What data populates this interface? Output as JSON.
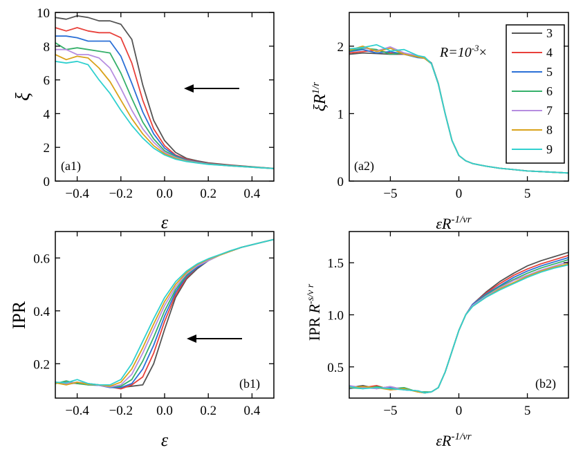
{
  "legend": {
    "title": "R=10",
    "title_sup": "-3",
    "title_tail": "×",
    "entries": [
      "3",
      "4",
      "5",
      "6",
      "7",
      "8",
      "9"
    ],
    "colors": [
      "#545454",
      "#e8403a",
      "#2a6fd6",
      "#35b06a",
      "#b68de0",
      "#d9a21a",
      "#2fd0cf"
    ]
  },
  "arrow": {
    "direction": "left"
  },
  "chart_data": [
    {
      "id": "a1",
      "panel_label": "(a1)",
      "type": "line",
      "xlabel": "ε",
      "ylabel": "ξ",
      "xlim": [
        -0.5,
        0.5
      ],
      "ylim": [
        0,
        10
      ],
      "xticks": [
        -0.4,
        -0.2,
        0.0,
        0.2,
        0.4
      ],
      "xtick_labels": [
        "−0.4",
        "−0.2",
        "0.0",
        "0.2",
        "0.4"
      ],
      "yticks": [
        0,
        2,
        4,
        6,
        8,
        10
      ],
      "ytick_labels": [
        "0",
        "2",
        "4",
        "6",
        "8",
        "10"
      ],
      "x": [
        -0.5,
        -0.45,
        -0.4,
        -0.35,
        -0.3,
        -0.25,
        -0.2,
        -0.15,
        -0.1,
        -0.05,
        0.0,
        0.05,
        0.1,
        0.15,
        0.2,
        0.3,
        0.4,
        0.5
      ],
      "series": [
        {
          "name": "3",
          "values": [
            9.7,
            9.6,
            9.8,
            9.7,
            9.5,
            9.5,
            9.3,
            8.4,
            5.7,
            3.6,
            2.4,
            1.7,
            1.35,
            1.2,
            1.08,
            0.95,
            0.85,
            0.75
          ]
        },
        {
          "name": "4",
          "values": [
            9.1,
            8.9,
            9.1,
            8.9,
            8.8,
            8.8,
            8.5,
            7.0,
            4.8,
            3.1,
            2.1,
            1.55,
            1.3,
            1.15,
            1.05,
            0.93,
            0.84,
            0.74
          ]
        },
        {
          "name": "5",
          "values": [
            8.6,
            8.6,
            8.5,
            8.3,
            8.3,
            8.3,
            7.4,
            5.8,
            4.1,
            2.8,
            1.95,
            1.5,
            1.25,
            1.13,
            1.03,
            0.92,
            0.83,
            0.74
          ]
        },
        {
          "name": "6",
          "values": [
            8.2,
            7.8,
            7.9,
            7.8,
            7.7,
            7.6,
            6.4,
            4.9,
            3.5,
            2.5,
            1.8,
            1.45,
            1.22,
            1.11,
            1.02,
            0.91,
            0.83,
            0.74
          ]
        },
        {
          "name": "7",
          "values": [
            7.8,
            7.8,
            7.5,
            7.5,
            7.3,
            6.7,
            5.5,
            4.2,
            3.1,
            2.3,
            1.7,
            1.4,
            1.2,
            1.1,
            1.01,
            0.9,
            0.82,
            0.74
          ]
        },
        {
          "name": "8",
          "values": [
            7.5,
            7.2,
            7.4,
            7.3,
            6.7,
            5.9,
            4.8,
            3.7,
            2.8,
            2.1,
            1.62,
            1.35,
            1.18,
            1.08,
            1.0,
            0.9,
            0.82,
            0.74
          ]
        },
        {
          "name": "9",
          "values": [
            7.1,
            7.0,
            7.1,
            6.9,
            6.0,
            5.2,
            4.2,
            3.3,
            2.55,
            1.95,
            1.55,
            1.3,
            1.16,
            1.07,
            0.99,
            0.9,
            0.82,
            0.74
          ]
        }
      ]
    },
    {
      "id": "a2",
      "panel_label": "(a2)",
      "type": "line",
      "xlabel": "εR-1/νr",
      "ylabel": "ξR1/r",
      "xlim": [
        -8,
        8
      ],
      "ylim": [
        0,
        2.5
      ],
      "xticks": [
        -5,
        0,
        5
      ],
      "xtick_labels": [
        "−5",
        "0",
        "5"
      ],
      "yticks": [
        0,
        1,
        2
      ],
      "ytick_labels": [
        "0",
        "1",
        "2"
      ],
      "x": [
        -8,
        -7,
        -6,
        -5,
        -4,
        -3,
        -2.5,
        -2,
        -1.5,
        -1,
        -0.5,
        0,
        0.5,
        1,
        1.5,
        2,
        3,
        4,
        5,
        6,
        7,
        8
      ],
      "series": [
        {
          "name": "3",
          "values": [
            1.88,
            1.9,
            1.89,
            1.88,
            1.88,
            1.85,
            1.83,
            1.75,
            1.45,
            1.0,
            0.6,
            0.38,
            0.3,
            0.26,
            0.24,
            0.22,
            0.19,
            0.17,
            0.15,
            0.14,
            0.13,
            0.12
          ]
        },
        {
          "name": "4",
          "values": [
            1.9,
            1.92,
            1.94,
            1.9,
            1.88,
            1.84,
            1.82,
            1.74,
            1.44,
            1.0,
            0.6,
            0.38,
            0.3,
            0.26,
            0.24,
            0.22,
            0.19,
            0.17,
            0.15,
            0.14,
            0.13,
            0.12
          ]
        },
        {
          "name": "5",
          "values": [
            1.92,
            1.95,
            1.9,
            1.92,
            1.88,
            1.83,
            1.82,
            1.74,
            1.44,
            1.0,
            0.6,
            0.38,
            0.3,
            0.26,
            0.24,
            0.22,
            0.19,
            0.17,
            0.15,
            0.14,
            0.13,
            0.12
          ]
        },
        {
          "name": "6",
          "values": [
            1.93,
            1.97,
            1.95,
            1.88,
            1.9,
            1.85,
            1.82,
            1.74,
            1.44,
            1.0,
            0.6,
            0.38,
            0.3,
            0.26,
            0.24,
            0.22,
            0.19,
            0.17,
            0.15,
            0.14,
            0.13,
            0.12
          ]
        },
        {
          "name": "7",
          "values": [
            1.95,
            1.98,
            1.93,
            1.99,
            1.9,
            1.86,
            1.83,
            1.74,
            1.44,
            1.0,
            0.6,
            0.38,
            0.3,
            0.26,
            0.24,
            0.22,
            0.19,
            0.17,
            0.15,
            0.14,
            0.13,
            0.12
          ]
        },
        {
          "name": "8",
          "values": [
            1.94,
            2.0,
            1.92,
            1.97,
            1.88,
            1.84,
            1.82,
            1.74,
            1.44,
            1.0,
            0.6,
            0.38,
            0.3,
            0.26,
            0.24,
            0.22,
            0.19,
            0.17,
            0.15,
            0.14,
            0.13,
            0.12
          ]
        },
        {
          "name": "9",
          "values": [
            1.96,
            1.98,
            2.02,
            1.93,
            1.95,
            1.86,
            1.84,
            1.74,
            1.44,
            1.0,
            0.6,
            0.38,
            0.3,
            0.26,
            0.24,
            0.22,
            0.19,
            0.17,
            0.15,
            0.14,
            0.13,
            0.12
          ]
        }
      ]
    },
    {
      "id": "b1",
      "panel_label": "(b1)",
      "type": "line",
      "xlabel": "ε",
      "ylabel": "IPR",
      "xlim": [
        -0.5,
        0.5
      ],
      "ylim": [
        0.07,
        0.7
      ],
      "xticks": [
        -0.4,
        -0.2,
        0.0,
        0.2,
        0.4
      ],
      "xtick_labels": [
        "−0.4",
        "−0.2",
        "0.0",
        "0.2",
        "0.4"
      ],
      "yticks": [
        0.2,
        0.4,
        0.6
      ],
      "ytick_labels": [
        "0.2",
        "0.4",
        "0.6"
      ],
      "x": [
        -0.5,
        -0.45,
        -0.4,
        -0.35,
        -0.3,
        -0.25,
        -0.2,
        -0.15,
        -0.1,
        -0.05,
        0.0,
        0.05,
        0.1,
        0.15,
        0.2,
        0.25,
        0.3,
        0.35,
        0.4,
        0.45,
        0.5
      ],
      "series": [
        {
          "name": "3",
          "values": [
            0.13,
            0.125,
            0.13,
            0.125,
            0.12,
            0.115,
            0.11,
            0.115,
            0.12,
            0.2,
            0.33,
            0.45,
            0.52,
            0.56,
            0.59,
            0.61,
            0.625,
            0.64,
            0.65,
            0.66,
            0.67
          ]
        },
        {
          "name": "4",
          "values": [
            0.128,
            0.13,
            0.125,
            0.122,
            0.12,
            0.112,
            0.105,
            0.12,
            0.15,
            0.24,
            0.36,
            0.46,
            0.525,
            0.565,
            0.59,
            0.61,
            0.625,
            0.64,
            0.65,
            0.66,
            0.67
          ]
        },
        {
          "name": "5",
          "values": [
            0.13,
            0.122,
            0.128,
            0.12,
            0.118,
            0.11,
            0.11,
            0.125,
            0.18,
            0.27,
            0.38,
            0.47,
            0.53,
            0.565,
            0.59,
            0.61,
            0.625,
            0.64,
            0.65,
            0.66,
            0.67
          ]
        },
        {
          "name": "6",
          "values": [
            0.125,
            0.135,
            0.125,
            0.12,
            0.12,
            0.112,
            0.115,
            0.14,
            0.21,
            0.3,
            0.4,
            0.48,
            0.535,
            0.57,
            0.59,
            0.61,
            0.625,
            0.64,
            0.65,
            0.66,
            0.67
          ]
        },
        {
          "name": "7",
          "values": [
            0.13,
            0.125,
            0.13,
            0.125,
            0.118,
            0.112,
            0.12,
            0.16,
            0.24,
            0.33,
            0.42,
            0.49,
            0.54,
            0.57,
            0.59,
            0.61,
            0.625,
            0.64,
            0.65,
            0.66,
            0.67
          ]
        },
        {
          "name": "8",
          "values": [
            0.128,
            0.12,
            0.13,
            0.122,
            0.12,
            0.115,
            0.13,
            0.18,
            0.26,
            0.35,
            0.435,
            0.5,
            0.545,
            0.575,
            0.595,
            0.61,
            0.625,
            0.64,
            0.65,
            0.66,
            0.67
          ]
        },
        {
          "name": "9",
          "values": [
            0.13,
            0.128,
            0.14,
            0.125,
            0.12,
            0.12,
            0.14,
            0.2,
            0.285,
            0.37,
            0.45,
            0.51,
            0.55,
            0.578,
            0.597,
            0.612,
            0.627,
            0.64,
            0.65,
            0.66,
            0.67
          ]
        }
      ]
    },
    {
      "id": "b2",
      "panel_label": "(b2)",
      "type": "line",
      "xlabel": "εR-1/νr",
      "ylabel": "IPR R-s/ν r",
      "xlim": [
        -8,
        8
      ],
      "ylim": [
        0.2,
        1.8
      ],
      "xticks": [
        -5,
        0,
        5
      ],
      "xtick_labels": [
        "−5",
        "0",
        "5"
      ],
      "yticks": [
        0.5,
        1.0,
        1.5
      ],
      "ytick_labels": [
        "0.5",
        "1.0",
        "1.5"
      ],
      "x": [
        -8,
        -7,
        -6,
        -5,
        -4,
        -3,
        -2.5,
        -2,
        -1.5,
        -1,
        -0.5,
        0,
        0.5,
        1,
        2,
        3,
        4,
        5,
        6,
        7,
        8
      ],
      "series": [
        {
          "name": "3",
          "values": [
            0.3,
            0.32,
            0.29,
            0.31,
            0.28,
            0.27,
            0.25,
            0.26,
            0.3,
            0.45,
            0.65,
            0.85,
            1.0,
            1.1,
            1.22,
            1.32,
            1.4,
            1.47,
            1.52,
            1.56,
            1.6
          ]
        },
        {
          "name": "4",
          "values": [
            0.31,
            0.3,
            0.32,
            0.28,
            0.29,
            0.26,
            0.25,
            0.26,
            0.3,
            0.45,
            0.65,
            0.85,
            1.0,
            1.1,
            1.21,
            1.3,
            1.38,
            1.44,
            1.49,
            1.53,
            1.57
          ]
        },
        {
          "name": "5",
          "values": [
            0.29,
            0.31,
            0.3,
            0.3,
            0.28,
            0.27,
            0.25,
            0.26,
            0.3,
            0.45,
            0.65,
            0.85,
            1.0,
            1.1,
            1.2,
            1.28,
            1.36,
            1.42,
            1.47,
            1.51,
            1.55
          ]
        },
        {
          "name": "6",
          "values": [
            0.3,
            0.29,
            0.31,
            0.29,
            0.3,
            0.26,
            0.26,
            0.26,
            0.3,
            0.45,
            0.65,
            0.85,
            1.0,
            1.09,
            1.19,
            1.27,
            1.34,
            1.4,
            1.45,
            1.49,
            1.53
          ]
        },
        {
          "name": "7",
          "values": [
            0.32,
            0.3,
            0.29,
            0.31,
            0.28,
            0.27,
            0.25,
            0.26,
            0.3,
            0.45,
            0.65,
            0.85,
            1.0,
            1.09,
            1.18,
            1.26,
            1.33,
            1.38,
            1.43,
            1.47,
            1.51
          ]
        },
        {
          "name": "8",
          "values": [
            0.3,
            0.31,
            0.3,
            0.28,
            0.29,
            0.26,
            0.25,
            0.26,
            0.3,
            0.45,
            0.65,
            0.85,
            1.0,
            1.08,
            1.17,
            1.25,
            1.31,
            1.37,
            1.42,
            1.46,
            1.49
          ]
        },
        {
          "name": "9",
          "values": [
            0.31,
            0.29,
            0.3,
            0.29,
            0.28,
            0.27,
            0.25,
            0.26,
            0.3,
            0.45,
            0.65,
            0.85,
            1.0,
            1.08,
            1.17,
            1.24,
            1.3,
            1.36,
            1.41,
            1.45,
            1.48
          ]
        }
      ]
    }
  ]
}
